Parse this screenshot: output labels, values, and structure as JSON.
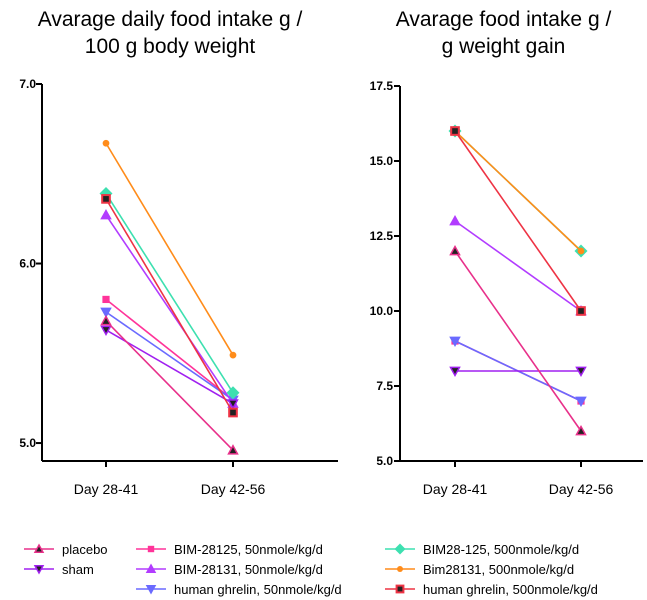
{
  "chart_data": [
    {
      "type": "line",
      "title": "Avarage daily food intake g / 100 g body weight",
      "title_lines": [
        "Avarage daily food intake g /",
        "100 g body weight"
      ],
      "categories": [
        "Day 28-41",
        "Day 42-56"
      ],
      "ylim": [
        4.9,
        7.0
      ],
      "yticks": [
        "7.0",
        "6.0",
        "5.0"
      ],
      "ytick_values": [
        7.0,
        6.0,
        5.0
      ],
      "series": [
        {
          "name": "placebo",
          "values": [
            5.68,
            4.96
          ]
        },
        {
          "name": "sham",
          "values": [
            5.63,
            5.22
          ]
        },
        {
          "name": "BIM-28125, 50nmole/kg/d",
          "values": [
            5.8,
            5.24
          ]
        },
        {
          "name": "BIM-28131, 50nmole/kg/d",
          "values": [
            6.27,
            5.22
          ]
        },
        {
          "name": "human ghrelin, 50nmole/kg/d",
          "values": [
            5.73,
            5.24
          ]
        },
        {
          "name": "BIM28-125, 500nmole/kg/d",
          "values": [
            6.39,
            5.28
          ]
        },
        {
          "name": "Bim28131, 500nmole/kg/d",
          "values": [
            6.67,
            5.49
          ]
        },
        {
          "name": "human ghrelin, 500nmole/kg/d",
          "values": [
            6.36,
            5.17
          ]
        }
      ]
    },
    {
      "type": "line",
      "title": "Avarage food intake g / g weight gain",
      "title_lines": [
        "Avarage food intake g /",
        "g weight gain"
      ],
      "categories": [
        "Day 28-41",
        "Day 42-56"
      ],
      "ylim": [
        5.0,
        17.5
      ],
      "yticks": [
        "17.5",
        "15.0",
        "12.5",
        "10.0",
        "7.5",
        "5.0"
      ],
      "ytick_values": [
        17.5,
        15.0,
        12.5,
        10.0,
        7.5,
        5.0
      ],
      "series": [
        {
          "name": "placebo",
          "values": [
            12.0,
            6.0
          ]
        },
        {
          "name": "sham",
          "values": [
            8.0,
            8.0
          ]
        },
        {
          "name": "BIM-28125, 50nmole/kg/d",
          "values": [
            9.0,
            7.0
          ]
        },
        {
          "name": "BIM-28131, 50nmole/kg/d",
          "values": [
            13.0,
            10.0
          ]
        },
        {
          "name": "human ghrelin, 50nmole/kg/d",
          "values": [
            9.0,
            7.0
          ]
        },
        {
          "name": "BIM28-125, 500nmole/kg/d",
          "values": [
            16.0,
            12.0
          ]
        },
        {
          "name": "Bim28131, 500nmole/kg/d",
          "values": [
            16.0,
            12.0
          ]
        },
        {
          "name": "human ghrelin, 500nmole/kg/d",
          "values": [
            16.0,
            10.0
          ]
        }
      ]
    }
  ],
  "legend": [
    {
      "label": "placebo",
      "color": "#e8308a",
      "marker": "triangle-up",
      "marker_fill": "#222222"
    },
    {
      "label": "sham",
      "color": "#a020f0",
      "marker": "triangle-down",
      "marker_fill": "#222222"
    },
    {
      "label": "BIM-28125, 50nmole/kg/d",
      "color": "#ff3399",
      "marker": "square",
      "marker_fill": "#ff3399"
    },
    {
      "label": "BIM-28131, 50nmole/kg/d",
      "color": "#b23cff",
      "marker": "triangle-up",
      "marker_fill": "#b23cff"
    },
    {
      "label": "human ghrelin, 50nmole/kg/d",
      "color": "#6a6aff",
      "marker": "triangle-down",
      "marker_fill": "#6a6aff"
    },
    {
      "label": "BIM28-125, 500nmole/kg/d",
      "color": "#3de0b0",
      "marker": "diamond",
      "marker_fill": "#3de0b0"
    },
    {
      "label": "Bim28131, 500nmole/kg/d",
      "color": "#ff8c1a",
      "marker": "circle",
      "marker_fill": "#ff8c1a"
    },
    {
      "label": "human ghrelin, 500nmole/kg/d",
      "color": "#ee3344",
      "marker": "square-outline",
      "marker_fill": "#ee3344"
    }
  ]
}
